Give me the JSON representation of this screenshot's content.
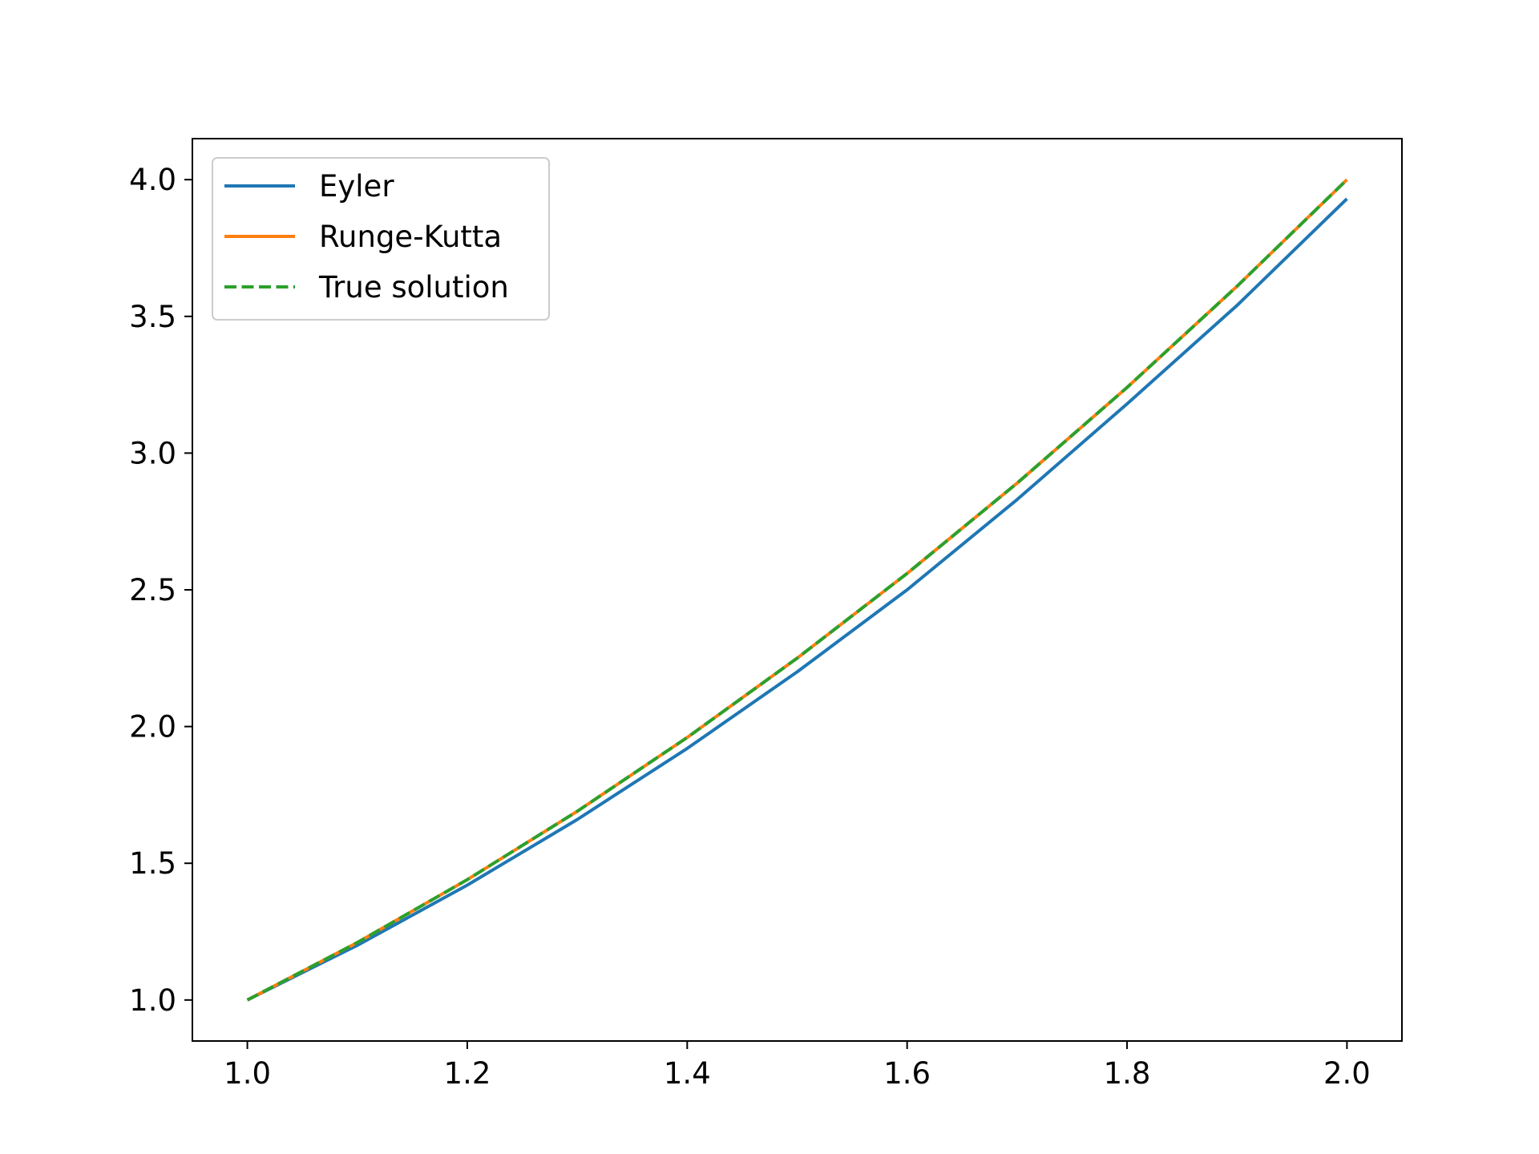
{
  "chart_data": {
    "type": "line",
    "title": "",
    "xlabel": "",
    "ylabel": "",
    "xlim": [
      0.95,
      2.05
    ],
    "ylim": [
      0.85,
      4.15
    ],
    "xticks": [
      1.0,
      1.2,
      1.4,
      1.6,
      1.8,
      2.0
    ],
    "xtick_labels": [
      "1.0",
      "1.2",
      "1.4",
      "1.6",
      "1.8",
      "2.0"
    ],
    "yticks": [
      1.0,
      1.5,
      2.0,
      2.5,
      3.0,
      3.5,
      4.0
    ],
    "ytick_labels": [
      "1.0",
      "1.5",
      "2.0",
      "2.5",
      "3.0",
      "3.5",
      "4.0"
    ],
    "grid": false,
    "legend_position": "upper-left",
    "x": [
      1.0,
      1.1,
      1.2,
      1.3,
      1.4,
      1.5,
      1.6,
      1.7,
      1.8,
      1.9,
      2.0
    ],
    "series": [
      {
        "name": "Eyler",
        "color": "#1f77b4",
        "style": "solid",
        "values": [
          1.0,
          1.2,
          1.42,
          1.66,
          1.92,
          2.2,
          2.5,
          2.83,
          3.18,
          3.54,
          3.93
        ]
      },
      {
        "name": "Runge-Kutta",
        "color": "#ff7f0e",
        "style": "solid",
        "values": [
          1.0,
          1.21,
          1.44,
          1.69,
          1.96,
          2.25,
          2.56,
          2.89,
          3.24,
          3.61,
          4.0
        ]
      },
      {
        "name": "True solution",
        "color": "#2ca02c",
        "style": "dashed",
        "values": [
          1.0,
          1.21,
          1.44,
          1.69,
          1.96,
          2.25,
          2.56,
          2.89,
          3.24,
          3.61,
          4.0
        ]
      }
    ]
  }
}
